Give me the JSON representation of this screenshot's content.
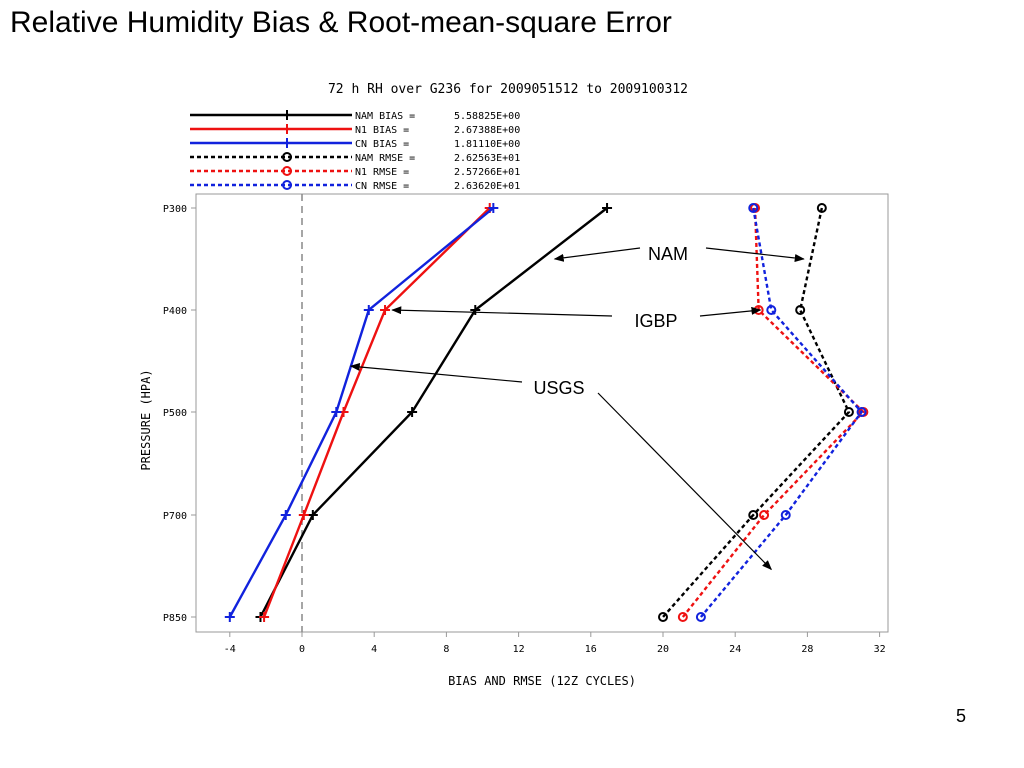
{
  "slide": {
    "title": "Relative Humidity Bias & Root-mean-square Error",
    "page_number": "5"
  },
  "chart_data": {
    "type": "line",
    "title": "72 h RH over G236 for 2009051512 to 2009100312",
    "xlabel": "BIAS AND RMSE (12Z CYCLES)",
    "ylabel": "PRESSURE (HPA)",
    "xlim": [
      -5,
      33
    ],
    "x_ticks": [
      -4,
      0,
      4,
      8,
      12,
      16,
      20,
      24,
      28,
      32
    ],
    "y_ticks": [
      "P300",
      "P400",
      "P500",
      "P700",
      "P850"
    ],
    "zero_line": true,
    "grid": false,
    "legend_position": "top",
    "series": [
      {
        "name": "NAM BIAS",
        "legend_value": "5.58825E+00",
        "color": "#000000",
        "style": "solid",
        "marker": "plus",
        "points": [
          [
            "P300",
            16.9
          ],
          [
            "P400",
            9.6
          ],
          [
            "P500",
            6.1
          ],
          [
            "P700",
            0.6
          ],
          [
            "P850",
            -2.3
          ]
        ]
      },
      {
        "name": "N1 BIAS",
        "legend_value": "2.67388E+00",
        "color": "#ee1111",
        "style": "solid",
        "marker": "plus",
        "points": [
          [
            "P300",
            10.4
          ],
          [
            "P400",
            4.6
          ],
          [
            "P500",
            2.3
          ],
          [
            "P700",
            0.1
          ],
          [
            "P850",
            -2.1
          ]
        ]
      },
      {
        "name": "CN BIAS",
        "legend_value": "1.81110E+00",
        "color": "#1122dd",
        "style": "solid",
        "marker": "plus",
        "points": [
          [
            "P300",
            10.6
          ],
          [
            "P400",
            3.7
          ],
          [
            "P500",
            1.9
          ],
          [
            "P700",
            -0.9
          ],
          [
            "P850",
            -4.0
          ]
        ]
      },
      {
        "name": "NAM RMSE",
        "legend_value": "2.62563E+01",
        "color": "#000000",
        "style": "dashed",
        "marker": "circle",
        "points": [
          [
            "P300",
            28.8
          ],
          [
            "P400",
            27.6
          ],
          [
            "P500",
            30.3
          ],
          [
            "P700",
            25.0
          ],
          [
            "P850",
            20.0
          ]
        ]
      },
      {
        "name": "N1 RMSE",
        "legend_value": "2.57266E+01",
        "color": "#ee1111",
        "style": "dashed",
        "marker": "circle",
        "points": [
          [
            "P300",
            25.1
          ],
          [
            "P400",
            25.3
          ],
          [
            "P500",
            31.1
          ],
          [
            "P700",
            25.6
          ],
          [
            "P850",
            21.1
          ]
        ]
      },
      {
        "name": "CN RMSE",
        "legend_value": "2.63620E+01",
        "color": "#1122dd",
        "style": "dashed",
        "marker": "circle",
        "points": [
          [
            "P300",
            25.0
          ],
          [
            "P400",
            26.0
          ],
          [
            "P500",
            31.0
          ],
          [
            "P700",
            26.8
          ],
          [
            "P850",
            22.1
          ]
        ]
      }
    ],
    "annotations": [
      {
        "text": "NAM",
        "arrows_to": [
          [
            "P350",
            14.0
          ],
          [
            "P350",
            27.8
          ]
        ]
      },
      {
        "text": "IGBP",
        "arrows_to": [
          [
            "P400",
            5.0
          ],
          [
            "P400",
            25.4
          ]
        ]
      },
      {
        "text": "USGS",
        "arrows_to": [
          [
            "P455",
            2.7
          ],
          [
            "P780",
            26.0
          ]
        ]
      }
    ]
  }
}
